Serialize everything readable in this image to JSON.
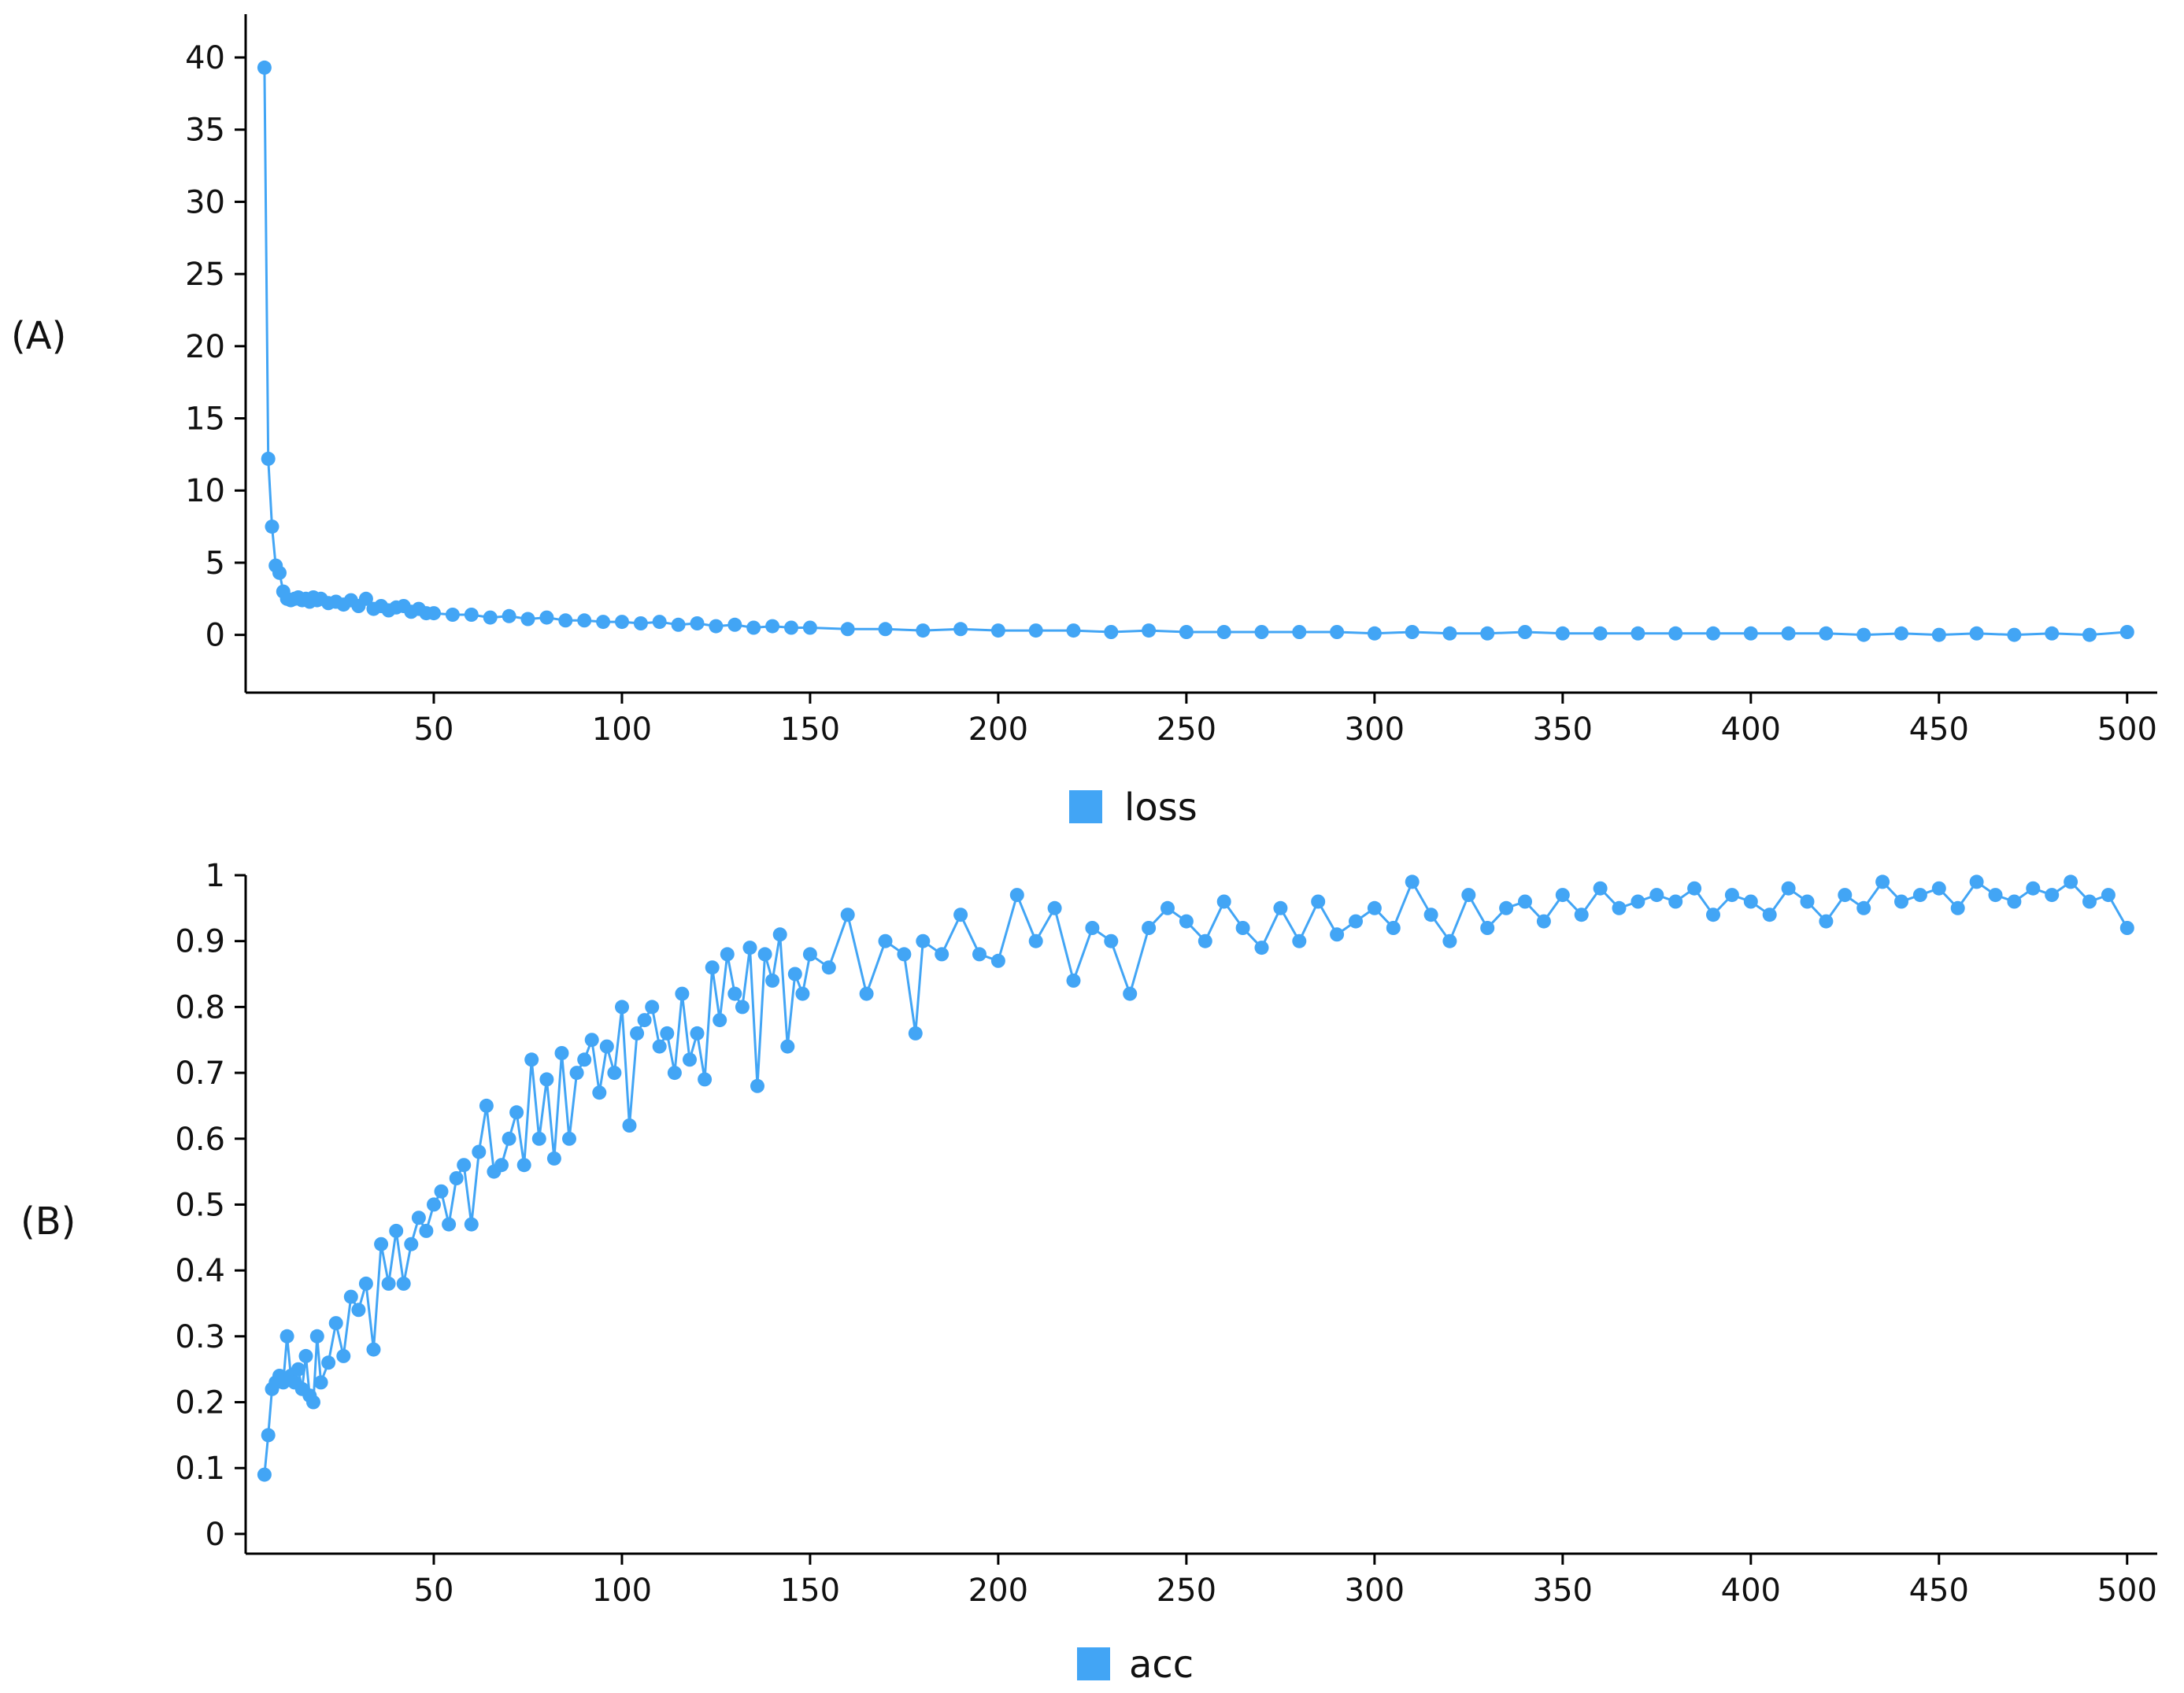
{
  "colors": {
    "series": "#42a5f5",
    "axis": "#000000",
    "text": "#111111"
  },
  "panels": [
    {
      "panel_label": "(A)",
      "legend": {
        "label": "loss",
        "placement": "bottom-center"
      },
      "x_ticks": [
        "50",
        "100",
        "150",
        "200",
        "250",
        "300",
        "350",
        "400",
        "450",
        "500"
      ],
      "y_ticks": [
        "0",
        "5",
        "10",
        "15",
        "20",
        "25",
        "30",
        "35",
        "40"
      ]
    },
    {
      "panel_label": "(B)",
      "legend": {
        "label": "acc",
        "placement": "bottom-center"
      },
      "x_ticks": [
        "50",
        "100",
        "150",
        "200",
        "250",
        "300",
        "350",
        "400",
        "450",
        "500"
      ],
      "y_ticks": [
        "0",
        "0.1",
        "0.2",
        "0.3",
        "0.4",
        "0.5",
        "0.6",
        "0.7",
        "0.8",
        "0.9",
        "1"
      ]
    }
  ],
  "chart_data": [
    {
      "type": "line",
      "title": "",
      "xlabel": "",
      "ylabel": "",
      "xlim": [
        0,
        500
      ],
      "ylim": [
        -4,
        43
      ],
      "grid": false,
      "legend_placement": "bottom-center",
      "series": [
        {
          "name": "loss",
          "x": [
            5,
            6,
            7,
            8,
            9,
            10,
            11,
            12,
            13,
            14,
            15,
            16,
            17,
            18,
            19,
            20,
            22,
            24,
            26,
            28,
            30,
            32,
            34,
            36,
            38,
            40,
            42,
            44,
            46,
            48,
            50,
            55,
            60,
            65,
            70,
            75,
            80,
            85,
            90,
            95,
            100,
            105,
            110,
            115,
            120,
            125,
            130,
            135,
            140,
            145,
            150,
            160,
            170,
            180,
            190,
            200,
            210,
            220,
            230,
            240,
            250,
            260,
            270,
            280,
            290,
            300,
            310,
            320,
            330,
            340,
            350,
            360,
            370,
            380,
            390,
            400,
            410,
            420,
            430,
            440,
            450,
            460,
            470,
            480,
            490,
            500
          ],
          "y": [
            39.3,
            12.2,
            7.5,
            4.8,
            4.3,
            3.0,
            2.5,
            2.4,
            2.5,
            2.6,
            2.4,
            2.5,
            2.3,
            2.6,
            2.4,
            2.5,
            2.2,
            2.3,
            2.1,
            2.4,
            2.0,
            2.5,
            1.8,
            2.0,
            1.7,
            1.9,
            2.0,
            1.6,
            1.8,
            1.5,
            1.5,
            1.4,
            1.4,
            1.2,
            1.3,
            1.1,
            1.2,
            1.0,
            1.0,
            0.9,
            0.9,
            0.8,
            0.9,
            0.7,
            0.8,
            0.6,
            0.7,
            0.5,
            0.6,
            0.5,
            0.5,
            0.4,
            0.4,
            0.3,
            0.4,
            0.3,
            0.3,
            0.3,
            0.2,
            0.3,
            0.2,
            0.2,
            0.2,
            0.2,
            0.2,
            0.1,
            0.2,
            0.1,
            0.1,
            0.2,
            0.1,
            0.1,
            0.1,
            0.1,
            0.1,
            0.1,
            0.1,
            0.1,
            0.0,
            0.1,
            0.0,
            0.1,
            0.0,
            0.1,
            0.0,
            0.2
          ]
        }
      ]
    },
    {
      "type": "line",
      "title": "",
      "xlabel": "",
      "ylabel": "",
      "xlim": [
        0,
        500
      ],
      "ylim": [
        -0.03,
        1.0
      ],
      "grid": false,
      "legend_placement": "bottom-center",
      "series": [
        {
          "name": "acc",
          "x": [
            5,
            6,
            7,
            8,
            9,
            10,
            11,
            12,
            13,
            14,
            15,
            16,
            17,
            18,
            19,
            20,
            22,
            24,
            26,
            28,
            30,
            32,
            34,
            36,
            38,
            40,
            42,
            44,
            46,
            48,
            50,
            52,
            54,
            56,
            58,
            60,
            62,
            64,
            66,
            68,
            70,
            72,
            74,
            76,
            78,
            80,
            82,
            84,
            86,
            88,
            90,
            92,
            94,
            96,
            98,
            100,
            102,
            104,
            106,
            108,
            110,
            112,
            114,
            116,
            118,
            120,
            122,
            124,
            126,
            128,
            130,
            132,
            134,
            136,
            138,
            140,
            142,
            144,
            146,
            148,
            150,
            155,
            160,
            165,
            170,
            175,
            178,
            180,
            185,
            190,
            195,
            200,
            205,
            210,
            215,
            220,
            225,
            230,
            235,
            240,
            245,
            250,
            255,
            260,
            265,
            270,
            275,
            280,
            285,
            290,
            295,
            300,
            305,
            310,
            315,
            320,
            325,
            330,
            335,
            340,
            345,
            350,
            355,
            360,
            365,
            370,
            375,
            380,
            385,
            390,
            395,
            400,
            405,
            410,
            415,
            420,
            425,
            430,
            435,
            440,
            445,
            450,
            455,
            460,
            465,
            470,
            475,
            480,
            485,
            490,
            495,
            500
          ],
          "y": [
            0.09,
            0.15,
            0.22,
            0.23,
            0.24,
            0.23,
            0.3,
            0.24,
            0.23,
            0.25,
            0.22,
            0.27,
            0.21,
            0.2,
            0.3,
            0.23,
            0.26,
            0.32,
            0.27,
            0.36,
            0.34,
            0.38,
            0.28,
            0.44,
            0.38,
            0.46,
            0.38,
            0.44,
            0.48,
            0.46,
            0.5,
            0.52,
            0.47,
            0.54,
            0.56,
            0.47,
            0.58,
            0.65,
            0.55,
            0.56,
            0.6,
            0.64,
            0.56,
            0.72,
            0.6,
            0.69,
            0.57,
            0.73,
            0.6,
            0.7,
            0.72,
            0.75,
            0.67,
            0.74,
            0.7,
            0.8,
            0.62,
            0.76,
            0.78,
            0.8,
            0.74,
            0.76,
            0.7,
            0.82,
            0.72,
            0.76,
            0.69,
            0.86,
            0.78,
            0.88,
            0.82,
            0.8,
            0.89,
            0.68,
            0.88,
            0.84,
            0.91,
            0.74,
            0.85,
            0.82,
            0.88,
            0.86,
            0.94,
            0.82,
            0.9,
            0.88,
            0.76,
            0.9,
            0.88,
            0.94,
            0.88,
            0.87,
            0.97,
            0.9,
            0.95,
            0.84,
            0.92,
            0.9,
            0.82,
            0.92,
            0.95,
            0.93,
            0.9,
            0.96,
            0.92,
            0.89,
            0.95,
            0.9,
            0.96,
            0.91,
            0.93,
            0.95,
            0.92,
            0.99,
            0.94,
            0.9,
            0.97,
            0.92,
            0.95,
            0.96,
            0.93,
            0.97,
            0.94,
            0.98,
            0.95,
            0.96,
            0.97,
            0.96,
            0.98,
            0.94,
            0.97,
            0.96,
            0.94,
            0.98,
            0.96,
            0.93,
            0.97,
            0.95,
            0.99,
            0.96,
            0.97,
            0.98,
            0.95,
            0.99,
            0.97,
            0.96,
            0.98,
            0.97,
            0.99,
            0.96,
            0.97,
            0.92
          ]
        }
      ]
    }
  ]
}
